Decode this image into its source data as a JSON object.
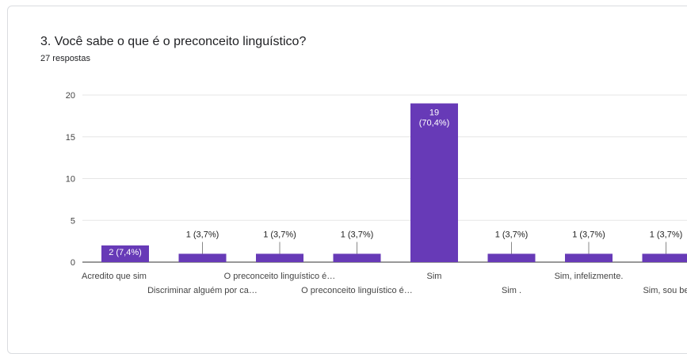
{
  "question_title": "3. Você sabe o que é o preconceito linguístico?",
  "response_count": "27 respostas",
  "colors": {
    "bar": "#673ab7",
    "grid": "#e6e6e6",
    "text": "#444444",
    "axis": "#333333"
  },
  "chart_data": {
    "type": "bar",
    "title": "3. Você sabe o que é o preconceito linguístico?",
    "categories": [
      "Acredito que sim",
      "Discriminar alguém por ca…",
      "O preconceito linguístico é…",
      "O preconceito linguístico é…",
      "Sim",
      "Sim .",
      "Sim, infelizmente.",
      "Sim, sou be"
    ],
    "values": [
      2,
      1,
      1,
      1,
      19,
      1,
      1,
      1
    ],
    "data_labels": [
      "2 (7,4%)",
      "1 (3,7%)",
      "1 (3,7%)",
      "1 (3,7%)",
      "19\n(70,4%)",
      "1 (3,7%)",
      "1 (3,7%)",
      "1 (3,7%)"
    ],
    "label_inside": [
      true,
      false,
      false,
      false,
      true,
      false,
      false,
      false
    ],
    "label_row": [
      0,
      1,
      0,
      1,
      0,
      1,
      0,
      1
    ],
    "yticks": [
      0,
      5,
      10,
      15,
      20
    ],
    "ylim": [
      0,
      20
    ],
    "grid": true,
    "xlabel": "",
    "ylabel": ""
  }
}
